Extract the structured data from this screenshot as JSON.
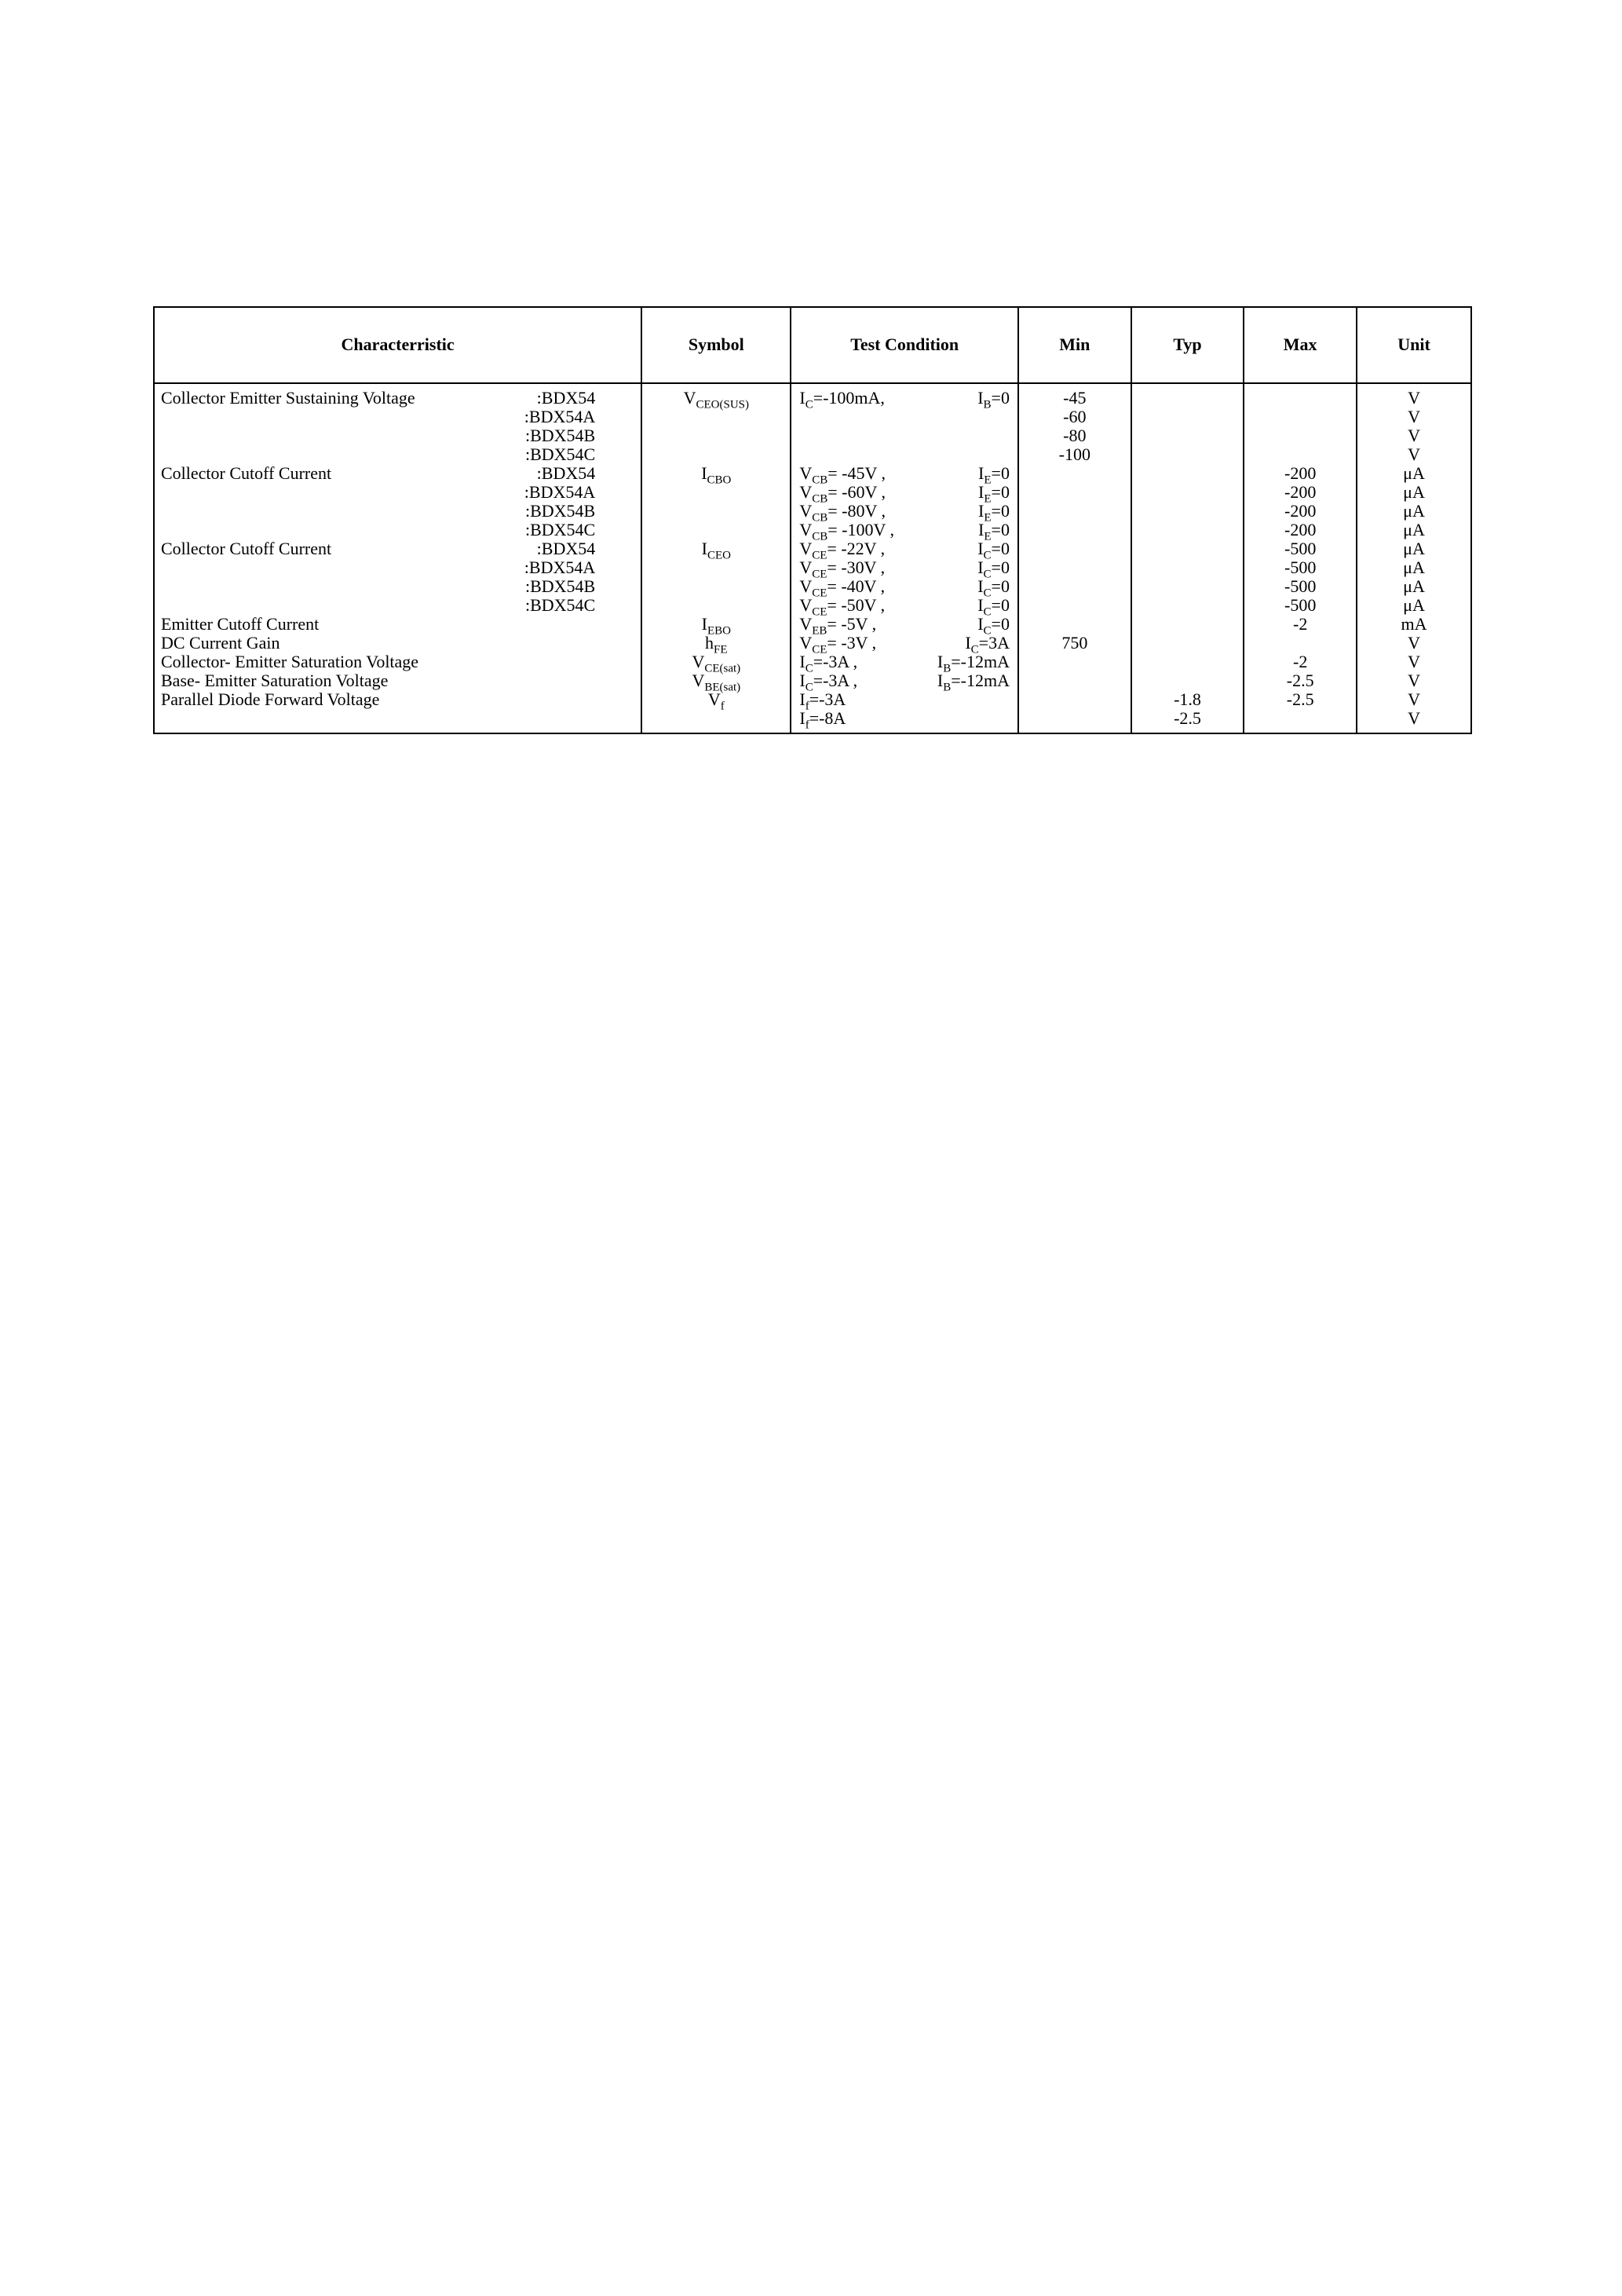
{
  "headers": {
    "characteristic": "Characterristic",
    "symbol": "Symbol",
    "test": "Test Condition",
    "min": "Min",
    "typ": "Typ",
    "max": "Max",
    "unit": "Unit"
  },
  "rows": [
    {
      "char_name": "Collector Emitter Sustaining Voltage",
      "variants": [
        ":BDX54",
        ":BDX54A",
        ":BDX54B",
        ":BDX54C"
      ],
      "symbol_html": "V<span class='sub'>CEO(SUS)</span>",
      "tests": [
        {
          "a": "I<span class='sub'>C</span>=-100mA,",
          "b": "I<span class='sub'>B</span>=0"
        },
        {
          "a": "",
          "b": ""
        },
        {
          "a": "",
          "b": ""
        },
        {
          "a": "",
          "b": ""
        }
      ],
      "min": [
        "-45",
        "-60",
        "-80",
        "-100"
      ],
      "typ": [
        "",
        "",
        "",
        ""
      ],
      "max": [
        "",
        "",
        "",
        ""
      ],
      "unit": [
        "V",
        "V",
        "V",
        "V"
      ]
    },
    {
      "char_name": "Collector Cutoff Current",
      "variants": [
        ":BDX54",
        ":BDX54A",
        ":BDX54B",
        ":BDX54C"
      ],
      "symbol_html": "I<span class='sub'>CBO</span>",
      "tests": [
        {
          "a": "V<span class='sub'>CB</span>= -45V ,",
          "b": "I<span class='sub'>E</span>=0"
        },
        {
          "a": "V<span class='sub'>CB</span>= -60V ,",
          "b": "I<span class='sub'>E</span>=0"
        },
        {
          "a": "V<span class='sub'>CB</span>= -80V ,",
          "b": "I<span class='sub'>E</span>=0"
        },
        {
          "a": "V<span class='sub'>CB</span>= -100V ,",
          "b": "I<span class='sub'>E</span>=0"
        }
      ],
      "min": [
        "",
        "",
        "",
        ""
      ],
      "typ": [
        "",
        "",
        "",
        ""
      ],
      "max": [
        "-200",
        "-200",
        "-200",
        "-200"
      ],
      "unit": [
        "μA",
        "μA",
        "μA",
        "μA"
      ]
    },
    {
      "char_name": "Collector Cutoff Current",
      "variants": [
        ":BDX54",
        ":BDX54A",
        ":BDX54B",
        ":BDX54C"
      ],
      "symbol_html": "I<span class='sub'>CEO</span>",
      "tests": [
        {
          "a": "V<span class='sub'>CE</span>= -22V ,",
          "b": "I<span class='sub'>C</span>=0"
        },
        {
          "a": "V<span class='sub'>CE</span>= -30V ,",
          "b": "I<span class='sub'>C</span>=0"
        },
        {
          "a": "V<span class='sub'>CE</span>= -40V ,",
          "b": "I<span class='sub'>C</span>=0"
        },
        {
          "a": "V<span class='sub'>CE</span>= -50V ,",
          "b": "I<span class='sub'>C</span>=0"
        }
      ],
      "min": [
        "",
        "",
        "",
        ""
      ],
      "typ": [
        "",
        "",
        "",
        ""
      ],
      "max": [
        "-500",
        "-500",
        "-500",
        "-500"
      ],
      "unit": [
        "μA",
        "μA",
        "μA",
        "μA"
      ]
    },
    {
      "char_name": "Emitter Cutoff Current",
      "variants": [
        ""
      ],
      "symbol_html": "I<span class='sub'>EBO</span>",
      "tests": [
        {
          "a": "V<span class='sub'>EB</span>= -5V ,",
          "b": "I<span class='sub'>C</span>=0"
        }
      ],
      "min": [
        ""
      ],
      "typ": [
        ""
      ],
      "max": [
        "-2"
      ],
      "unit": [
        "mA"
      ]
    },
    {
      "char_name": "DC Current Gain",
      "variants": [
        ""
      ],
      "symbol_html": "h<span class='sub'>FE</span>",
      "tests": [
        {
          "a": "V<span class='sub'>CE</span>= -3V ,",
          "b": "I<span class='sub'>C</span>=3A"
        }
      ],
      "min": [
        "750"
      ],
      "typ": [
        ""
      ],
      "max": [
        ""
      ],
      "unit": [
        "V"
      ]
    },
    {
      "char_name": "Collector- Emitter Saturation Voltage",
      "variants": [
        ""
      ],
      "symbol_html": "V<span class='sub'>CE(sat)</span>",
      "tests": [
        {
          "a": "I<span class='sub'>C</span>=-3A ,",
          "b": "I<span class='sub'>B</span>=-12mA"
        }
      ],
      "min": [
        ""
      ],
      "typ": [
        ""
      ],
      "max": [
        "-2"
      ],
      "unit": [
        "V"
      ]
    },
    {
      "char_name": "Base- Emitter Saturation Voltage",
      "variants": [
        ""
      ],
      "symbol_html": "V<span class='sub'>BE(sat)</span>",
      "tests": [
        {
          "a": "I<span class='sub'>C</span>=-3A ,",
          "b": "I<span class='sub'>B</span>=-12mA"
        }
      ],
      "min": [
        ""
      ],
      "typ": [
        ""
      ],
      "max": [
        "-2.5"
      ],
      "unit": [
        "V"
      ]
    },
    {
      "char_name": "Parallel Diode Forward Voltage",
      "variants": [
        "",
        ""
      ],
      "symbol_html": "V<span class='sub'>f</span>",
      "tests": [
        {
          "a": "I<span class='sub'>f</span>=-3A",
          "b": ""
        },
        {
          "a": "I<span class='sub'>f</span>=-8A",
          "b": ""
        }
      ],
      "min": [
        "",
        ""
      ],
      "typ": [
        "-1.8",
        "-2.5"
      ],
      "max": [
        "-2.5",
        ""
      ],
      "unit": [
        "V",
        "V"
      ]
    }
  ]
}
